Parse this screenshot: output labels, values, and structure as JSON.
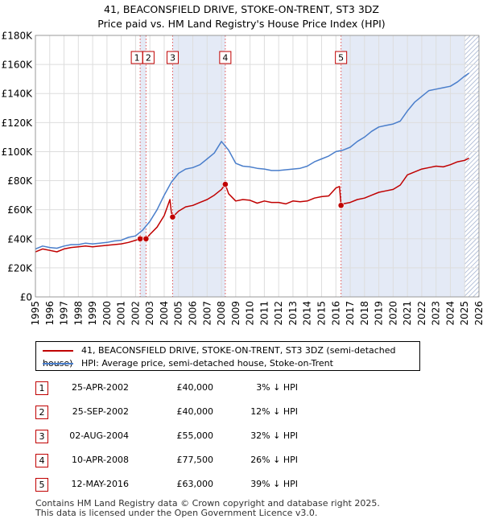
{
  "title": {
    "line1": "41, BEACONSFIELD DRIVE, STOKE-ON-TRENT, ST3 3DZ",
    "line2": "Price paid vs. HM Land Registry's House Price Index (HPI)"
  },
  "colors": {
    "price_line": "#c00000",
    "hpi_line": "#4a7ecb",
    "shade": "#e4eaf6",
    "grid": "#dddddd",
    "vline": "#e05050",
    "hatch": "#9aaacc"
  },
  "chart_data": {
    "type": "line",
    "title": "Price paid vs. HM Land Registry's House Price Index (HPI)",
    "xlim": [
      1995,
      2026
    ],
    "ylim": [
      0,
      180000
    ],
    "x_ticks": [
      1995,
      1996,
      1997,
      1998,
      1999,
      2000,
      2001,
      2002,
      2003,
      2004,
      2005,
      2006,
      2007,
      2008,
      2009,
      2010,
      2011,
      2012,
      2013,
      2014,
      2015,
      2016,
      2017,
      2018,
      2019,
      2020,
      2021,
      2022,
      2023,
      2024,
      2025,
      2026
    ],
    "y_ticks": [
      0,
      20000,
      40000,
      60000,
      80000,
      100000,
      120000,
      140000,
      160000,
      180000
    ],
    "y_tick_labels": [
      "£0",
      "£20K",
      "£40K",
      "£60K",
      "£80K",
      "£100K",
      "£120K",
      "£140K",
      "£160K",
      "£180K"
    ],
    "shaded_ranges": [
      [
        2002.32,
        2002.73
      ],
      [
        2004.59,
        2008.27
      ],
      [
        2016.36,
        2025.3
      ]
    ],
    "hatch_from": 2025.0,
    "series": [
      {
        "name": "41, BEACONSFIELD DRIVE, STOKE-ON-TRENT, ST3 3DZ (semi-detached house)",
        "color": "#c00000",
        "x": [
          1995.0,
          1995.5,
          1996.0,
          1996.5,
          1997.0,
          1997.5,
          1998.0,
          1998.5,
          1999.0,
          1999.5,
          2000.0,
          2000.5,
          2001.0,
          2001.5,
          2002.0,
          2002.32,
          2002.5,
          2002.73,
          2003.0,
          2003.5,
          2004.0,
          2004.4,
          2004.5,
          2004.59,
          2005.0,
          2005.5,
          2006.0,
          2006.5,
          2007.0,
          2007.5,
          2008.0,
          2008.27,
          2008.5,
          2009.0,
          2009.5,
          2010.0,
          2010.5,
          2011.0,
          2011.5,
          2012.0,
          2012.5,
          2013.0,
          2013.5,
          2014.0,
          2014.5,
          2015.0,
          2015.5,
          2016.0,
          2016.25,
          2016.36,
          2016.5,
          2017.0,
          2017.5,
          2018.0,
          2018.5,
          2019.0,
          2019.5,
          2020.0,
          2020.5,
          2021.0,
          2021.5,
          2022.0,
          2022.5,
          2023.0,
          2023.5,
          2024.0,
          2024.5,
          2025.0,
          2025.3
        ],
        "values": [
          31000,
          33000,
          32000,
          31000,
          33000,
          34000,
          34500,
          35000,
          34500,
          35000,
          35500,
          36000,
          36500,
          37500,
          39000,
          40000,
          41000,
          40000,
          43000,
          48000,
          56000,
          67000,
          58000,
          55000,
          59000,
          62000,
          63000,
          65000,
          67000,
          70000,
          74000,
          77500,
          71000,
          66000,
          67000,
          66500,
          64500,
          66000,
          65000,
          65000,
          64000,
          66000,
          65500,
          66000,
          68000,
          69000,
          69500,
          75000,
          76000,
          63000,
          64000,
          65000,
          67000,
          68000,
          70000,
          72000,
          73000,
          74000,
          77000,
          84000,
          86000,
          88000,
          89000,
          90000,
          89500,
          91000,
          93000,
          94000,
          95500
        ]
      },
      {
        "name": "HPI: Average price, semi-detached house, Stoke-on-Trent",
        "color": "#4a7ecb",
        "x": [
          1995.0,
          1995.5,
          1996.0,
          1996.5,
          1997.0,
          1997.5,
          1998.0,
          1998.5,
          1999.0,
          1999.5,
          2000.0,
          2000.5,
          2001.0,
          2001.5,
          2002.0,
          2002.5,
          2003.0,
          2003.5,
          2004.0,
          2004.5,
          2005.0,
          2005.5,
          2006.0,
          2006.5,
          2007.0,
          2007.5,
          2008.0,
          2008.5,
          2009.0,
          2009.5,
          2010.0,
          2010.5,
          2011.0,
          2011.5,
          2012.0,
          2012.5,
          2013.0,
          2013.5,
          2014.0,
          2014.5,
          2015.0,
          2015.5,
          2016.0,
          2016.5,
          2017.0,
          2017.5,
          2018.0,
          2018.5,
          2019.0,
          2019.5,
          2020.0,
          2020.5,
          2021.0,
          2021.5,
          2022.0,
          2022.5,
          2023.0,
          2023.5,
          2024.0,
          2024.5,
          2025.0,
          2025.3
        ],
        "values": [
          33000,
          35000,
          34000,
          33500,
          35000,
          36000,
          36000,
          37000,
          36500,
          37000,
          37500,
          38500,
          39000,
          41000,
          42000,
          46000,
          52000,
          60000,
          70000,
          79000,
          85000,
          88000,
          89000,
          91000,
          95000,
          99000,
          107000,
          101000,
          92000,
          90000,
          89500,
          88500,
          88000,
          87000,
          87000,
          87500,
          88000,
          88500,
          90000,
          93000,
          95000,
          97000,
          100000,
          101000,
          103000,
          107000,
          110000,
          114000,
          117000,
          118000,
          119000,
          121000,
          128000,
          134000,
          138000,
          142000,
          143000,
          144000,
          145000,
          148000,
          152000,
          154000
        ]
      }
    ],
    "transactions": [
      {
        "num": "1",
        "x": 2002.32,
        "price": 40000
      },
      {
        "num": "2",
        "x": 2002.73,
        "price": 40000
      },
      {
        "num": "3",
        "x": 2004.59,
        "price": 55000
      },
      {
        "num": "4",
        "x": 2008.27,
        "price": 77500
      },
      {
        "num": "5",
        "x": 2016.36,
        "price": 63000
      }
    ]
  },
  "legend": {
    "price_label": "41, BEACONSFIELD DRIVE, STOKE-ON-TRENT, ST3 3DZ (semi-detached house)",
    "hpi_label": "HPI: Average price, semi-detached house, Stoke-on-Trent"
  },
  "table": [
    {
      "num": "1",
      "date": "25-APR-2002",
      "price": "£40,000",
      "hpi": "3% ↓ HPI"
    },
    {
      "num": "2",
      "date": "25-SEP-2002",
      "price": "£40,000",
      "hpi": "12% ↓ HPI"
    },
    {
      "num": "3",
      "date": "02-AUG-2004",
      "price": "£55,000",
      "hpi": "32% ↓ HPI"
    },
    {
      "num": "4",
      "date": "10-APR-2008",
      "price": "£77,500",
      "hpi": "26% ↓ HPI"
    },
    {
      "num": "5",
      "date": "12-MAY-2016",
      "price": "£63,000",
      "hpi": "39% ↓ HPI"
    }
  ],
  "footer": {
    "line1": "Contains HM Land Registry data © Crown copyright and database right 2025.",
    "line2": "This data is licensed under the Open Government Licence v3.0."
  }
}
